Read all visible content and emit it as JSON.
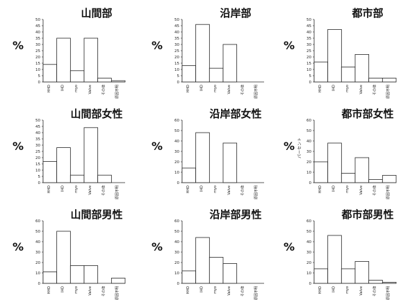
{
  "figure": {
    "percent_symbol": "%"
  },
  "chart_data": [
    {
      "type": "bar",
      "title": "山間部",
      "ylabel": "",
      "ylim": [
        0,
        50
      ],
      "yticks": [
        0,
        5,
        10,
        15,
        20,
        25,
        30,
        35,
        40,
        45,
        50
      ],
      "categories": [
        "HHD",
        "IHD",
        "myo",
        "Valve",
        "その他",
        "原因不明"
      ],
      "values": [
        14,
        35,
        9,
        35,
        3,
        1
      ]
    },
    {
      "type": "bar",
      "title": "沿岸部",
      "ylabel": "",
      "ylim": [
        0,
        50
      ],
      "yticks": [
        0,
        5,
        10,
        15,
        20,
        25,
        30,
        35,
        40,
        45,
        50
      ],
      "categories": [
        "HHD",
        "IHD",
        "myo",
        "Valve",
        "その他",
        "原因不明"
      ],
      "values": [
        13,
        46,
        11,
        30,
        0,
        0
      ]
    },
    {
      "type": "bar",
      "title": "都市部",
      "ylabel": "",
      "ylim": [
        0,
        50
      ],
      "yticks": [
        0,
        5,
        10,
        15,
        20,
        25,
        30,
        35,
        40,
        45,
        50
      ],
      "categories": [
        "HHD",
        "IHD",
        "myo",
        "Valve",
        "その他",
        "原因不明"
      ],
      "values": [
        16,
        42,
        12,
        22,
        3,
        3
      ]
    },
    {
      "type": "bar",
      "title": "山間部女性",
      "ylabel": "",
      "ylim": [
        0,
        50
      ],
      "yticks": [
        0,
        5,
        10,
        15,
        20,
        25,
        30,
        35,
        40,
        45,
        50
      ],
      "categories": [
        "HHD",
        "IHD",
        "myo",
        "Valve",
        "その他",
        "原因不明"
      ],
      "values": [
        17,
        28,
        6,
        44,
        6,
        0
      ]
    },
    {
      "type": "bar",
      "title": "沿岸部女性",
      "ylabel": "",
      "ylim": [
        0,
        60
      ],
      "yticks": [
        0,
        10,
        20,
        30,
        40,
        50,
        60
      ],
      "categories": [
        "HHD",
        "IHD",
        "myo",
        "Valve",
        "その他",
        "原因不明"
      ],
      "values": [
        14,
        48,
        0,
        38,
        0,
        0
      ]
    },
    {
      "type": "bar",
      "title": "都市部女性",
      "ylabel": "パーセント",
      "ylim": [
        0,
        60
      ],
      "yticks": [
        0,
        10,
        20,
        30,
        40,
        50,
        60
      ],
      "categories": [
        "HHD",
        "IHD",
        "myo",
        "Valve",
        "その他",
        "原因不明"
      ],
      "values": [
        20,
        38,
        9,
        24,
        3,
        7
      ]
    },
    {
      "type": "bar",
      "title": "山間部男性",
      "ylabel": "",
      "ylim": [
        0,
        60
      ],
      "yticks": [
        0,
        10,
        20,
        30,
        40,
        50,
        60
      ],
      "categories": [
        "HHD",
        "IHD",
        "myo",
        "Valve",
        "その他",
        "原因不明"
      ],
      "values": [
        11,
        50,
        17,
        17,
        0,
        5
      ]
    },
    {
      "type": "bar",
      "title": "沿岸部男性",
      "ylabel": "",
      "ylim": [
        0,
        60
      ],
      "yticks": [
        0,
        10,
        20,
        30,
        40,
        50,
        60
      ],
      "categories": [
        "HHD",
        "IHD",
        "myo",
        "Valve",
        "その他",
        "原因不明"
      ],
      "values": [
        12,
        44,
        25,
        19,
        0,
        0
      ]
    },
    {
      "type": "bar",
      "title": "都市部男性",
      "ylabel": "",
      "ylim": [
        0,
        60
      ],
      "yticks": [
        0,
        10,
        20,
        30,
        40,
        50,
        60
      ],
      "categories": [
        "HHD",
        "IHD",
        "myo",
        "Valve",
        "その他",
        "原因不明"
      ],
      "values": [
        14,
        46,
        14,
        21,
        3,
        1
      ]
    }
  ]
}
